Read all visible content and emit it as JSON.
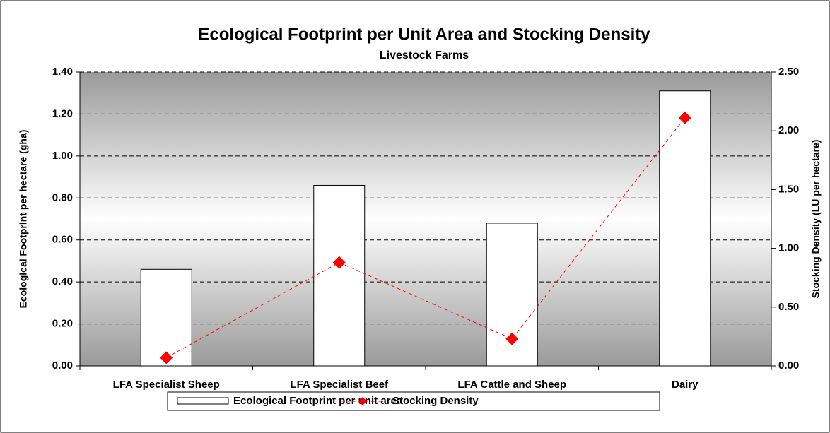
{
  "chart_data": {
    "type": "bar-line",
    "title": "Ecological Footprint per Unit Area and Stocking Density",
    "subtitle": "Livestock Farms",
    "y_label": "Ecological Footprint per hectare (gha)",
    "y2_label": "Stocking Density (LU per hectare)",
    "categories": [
      "LFA Specialist Sheep",
      "LFA Specialist Beef",
      "LFA Cattle and Sheep",
      "Dairy"
    ],
    "series": [
      {
        "name": "Ecological Footprint per unit area",
        "type": "bar",
        "color": "#ffffff",
        "values": [
          0.46,
          0.86,
          0.68,
          1.31
        ]
      },
      {
        "name": "Stocking Density",
        "type": "line",
        "color": "#ff0000",
        "axis": "y2",
        "values": [
          0.07,
          0.88,
          0.23,
          2.11
        ]
      }
    ],
    "ylim": [
      0,
      1.4
    ],
    "yticks": [
      {
        "value": 0,
        "label": "0.00"
      },
      {
        "value": 0.2,
        "label": "0.20"
      },
      {
        "value": 0.4,
        "label": "0.40"
      },
      {
        "value": 0.6,
        "label": "0.60"
      },
      {
        "value": 0.8,
        "label": "0.80"
      },
      {
        "value": 1.0,
        "label": "1.00"
      },
      {
        "value": 1.2,
        "label": "1.20"
      },
      {
        "value": 1.4,
        "label": "1.40"
      }
    ],
    "y2lim": [
      0,
      2.5
    ],
    "y2ticks": [
      {
        "value": 0,
        "label": "0.00"
      },
      {
        "value": 0.5,
        "label": "0.50"
      },
      {
        "value": 1.0,
        "label": "1.00"
      },
      {
        "value": 1.5,
        "label": "1.50"
      },
      {
        "value": 2.0,
        "label": "2.00"
      },
      {
        "value": 2.5,
        "label": "2.50"
      }
    ],
    "grid": true,
    "legend": "bottom"
  }
}
